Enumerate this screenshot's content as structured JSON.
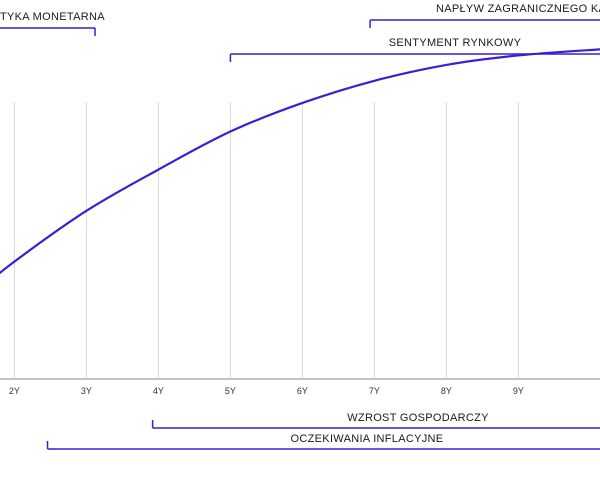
{
  "colors": {
    "accent": "#3a1fd6",
    "grid": "#d9d9d9",
    "axis": "#888888"
  },
  "chart_data": {
    "type": "line",
    "title": "",
    "xlabel": "",
    "ylabel": "",
    "categories": [
      "2Y",
      "3Y",
      "4Y",
      "5Y",
      "6Y",
      "7Y",
      "8Y",
      "9Y"
    ],
    "grid": "vertical",
    "series": [
      {
        "x": [
          1.4,
          2,
          3,
          4,
          5,
          6,
          7,
          8,
          9,
          10.2
        ],
        "values": [
          0.26,
          0.37,
          0.53,
          0.66,
          0.78,
          0.87,
          0.94,
          0.99,
          1.02,
          1.04
        ]
      }
    ],
    "xlim": [
      1.4,
      10.2
    ],
    "ylim": [
      0,
      1.1
    ],
    "annotations": {
      "top": [
        {
          "label": "TYKA MONETARNA",
          "from": 1.4,
          "to": 3.12
        },
        {
          "label": "NAPŁYW ZAGRANICZNEGO KAPITA",
          "from": 6.94,
          "to": 10.2
        },
        {
          "label": "SENTYMENT RYNKOWY",
          "from": 5.0,
          "to": 10.2
        }
      ],
      "bottom": [
        {
          "label": "WZROST GOSPODARCZY",
          "from": 3.92,
          "to": 10.2
        },
        {
          "label": "OCZEKIWANIA INFLACYJNE",
          "from": 2.46,
          "to": 10.2
        }
      ]
    }
  }
}
